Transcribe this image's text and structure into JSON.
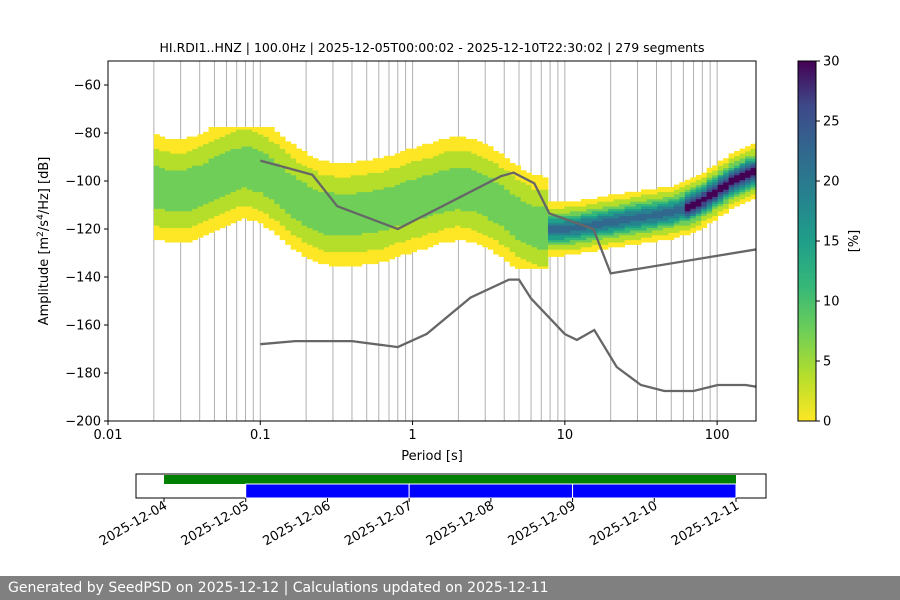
{
  "chart_data": {
    "type": "heatmap",
    "title": "HI.RDI1..HNZ | 100.0Hz | 2025-12-05T00:00:02 - 2025-12-10T22:30:02 | 279 segments",
    "xlabel": "Period [s]",
    "ylabel_main": "Amplitude [m",
    "ylabel_sup1": "2",
    "ylabel_mid": "/s",
    "ylabel_sup2": "4",
    "ylabel_end": "/Hz] [dB]",
    "x_scale": "log",
    "xlim": [
      0.01,
      180
    ],
    "ylim": [
      -200,
      -50
    ],
    "x_ticks": [
      0.01,
      0.1,
      1,
      10,
      100
    ],
    "x_tick_labels": [
      "0.01",
      "0.1",
      "1",
      "10",
      "100"
    ],
    "y_ticks": [
      -200,
      -180,
      -160,
      -140,
      -120,
      -100,
      -80,
      -60
    ],
    "y_tick_labels": [
      "−200",
      "−180",
      "−160",
      "−140",
      "−120",
      "−100",
      "−80",
      "−60"
    ],
    "grid": "vertical at log minor and major period ticks",
    "colorbar": {
      "label": "[%]",
      "range": [
        0,
        30
      ],
      "ticks": [
        0,
        5,
        10,
        15,
        20,
        25,
        30
      ],
      "tick_labels": [
        "0",
        "5",
        "10",
        "15",
        "20",
        "25",
        "30"
      ],
      "colormap": "viridis_r"
    },
    "ppsd_mode": [
      {
        "period": 0.02,
        "db": -102
      },
      {
        "period": 0.025,
        "db": -104
      },
      {
        "period": 0.032,
        "db": -104
      },
      {
        "period": 0.04,
        "db": -102
      },
      {
        "period": 0.05,
        "db": -99
      },
      {
        "period": 0.063,
        "db": -96
      },
      {
        "period": 0.08,
        "db": -94
      },
      {
        "period": 0.1,
        "db": -96
      },
      {
        "period": 0.13,
        "db": -101
      },
      {
        "period": 0.16,
        "db": -106
      },
      {
        "period": 0.2,
        "db": -110
      },
      {
        "period": 0.25,
        "db": -113
      },
      {
        "period": 0.32,
        "db": -114
      },
      {
        "period": 0.4,
        "db": -114
      },
      {
        "period": 0.5,
        "db": -113
      },
      {
        "period": 0.63,
        "db": -112
      },
      {
        "period": 0.8,
        "db": -110
      },
      {
        "period": 1.0,
        "db": -108
      },
      {
        "period": 1.3,
        "db": -106
      },
      {
        "period": 1.6,
        "db": -104
      },
      {
        "period": 2.0,
        "db": -103
      },
      {
        "period": 2.5,
        "db": -104
      },
      {
        "period": 3.2,
        "db": -107
      },
      {
        "period": 4.0,
        "db": -111
      },
      {
        "period": 5.0,
        "db": -116
      },
      {
        "period": 6.3,
        "db": -119
      },
      {
        "period": 8.0,
        "db": -120
      },
      {
        "period": 10,
        "db": -120
      },
      {
        "period": 13,
        "db": -119
      },
      {
        "period": 16,
        "db": -118
      },
      {
        "period": 20,
        "db": -117
      },
      {
        "period": 25,
        "db": -116
      },
      {
        "period": 32,
        "db": -115
      },
      {
        "period": 40,
        "db": -114
      },
      {
        "period": 50,
        "db": -113
      },
      {
        "period": 63,
        "db": -111
      },
      {
        "period": 80,
        "db": -108
      },
      {
        "period": 100,
        "db": -104
      },
      {
        "period": 126,
        "db": -100
      },
      {
        "period": 160,
        "db": -97
      },
      {
        "period": 180,
        "db": -96
      }
    ],
    "nhnm": [
      {
        "period": 0.1,
        "db": -91.5
      },
      {
        "period": 0.22,
        "db": -97.4
      },
      {
        "period": 0.32,
        "db": -110.5
      },
      {
        "period": 0.8,
        "db": -120
      },
      {
        "period": 3.8,
        "db": -98
      },
      {
        "period": 4.6,
        "db": -96.5
      },
      {
        "period": 6.3,
        "db": -101
      },
      {
        "period": 7.9,
        "db": -113.5
      },
      {
        "period": 15.4,
        "db": -120
      },
      {
        "period": 20,
        "db": -138.5
      },
      {
        "period": 180,
        "db": -128.5
      }
    ],
    "nlnm": [
      {
        "period": 0.1,
        "db": -168
      },
      {
        "period": 0.17,
        "db": -166.7
      },
      {
        "period": 0.4,
        "db": -166.7
      },
      {
        "period": 0.8,
        "db": -169.2
      },
      {
        "period": 1.24,
        "db": -163.7
      },
      {
        "period": 2.4,
        "db": -148.6
      },
      {
        "period": 4.3,
        "db": -141.1
      },
      {
        "period": 5.0,
        "db": -141.1
      },
      {
        "period": 6.0,
        "db": -149
      },
      {
        "period": 10,
        "db": -163.8
      },
      {
        "period": 12,
        "db": -166.2
      },
      {
        "period": 15.6,
        "db": -162.1
      },
      {
        "period": 21.9,
        "db": -177.5
      },
      {
        "period": 31.6,
        "db": -185
      },
      {
        "period": 45,
        "db": -187.5
      },
      {
        "period": 70,
        "db": -187.5
      },
      {
        "period": 101,
        "db": -185
      },
      {
        "period": 154,
        "db": -185
      },
      {
        "period": 180,
        "db": -185.7
      }
    ],
    "coverage": {
      "date_ticks": [
        "2025-12-04",
        "2025-12-05",
        "2025-12-06",
        "2025-12-07",
        "2025-12-08",
        "2025-12-09",
        "2025-12-10",
        "2025-12-11"
      ],
      "data_span": {
        "start": "2025-12-04",
        "end": "2025-12-11",
        "color": "#008000"
      },
      "processed_segments": [
        {
          "start": "2025-12-05",
          "end": "2025-12-07",
          "color": "#0000ff"
        },
        {
          "start": "2025-12-07",
          "end": "2025-12-09",
          "color": "#0000ff"
        },
        {
          "start": "2025-12-09",
          "end": "2025-12-11",
          "color": "#0000ff"
        }
      ]
    }
  },
  "colors": {
    "model_line": "#666666",
    "grid": "#b0b0b0",
    "footer_bg": "#808080",
    "footer_text": "#ffffff"
  },
  "footer": {
    "text": "Generated by SeedPSD on 2025-12-12 | Calculations updated on 2025-12-11"
  }
}
